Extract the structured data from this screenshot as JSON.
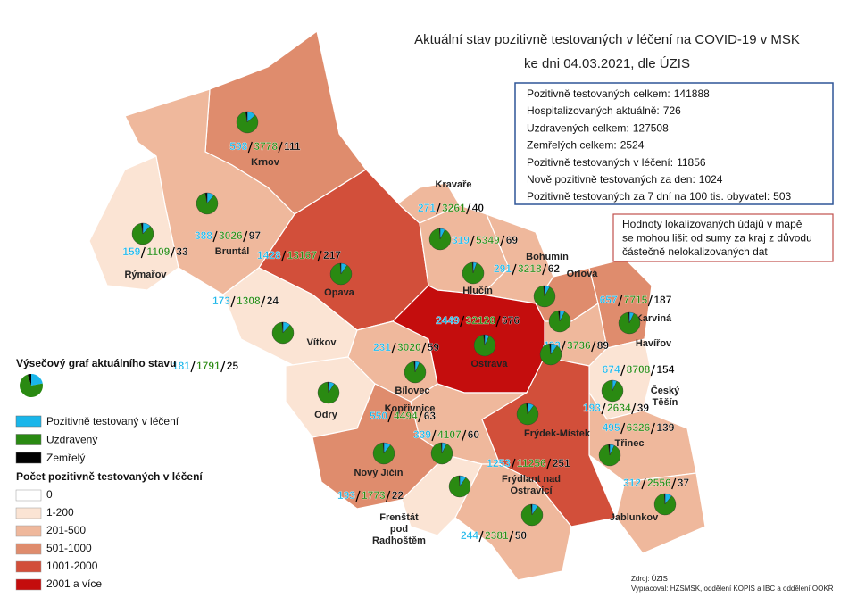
{
  "title": [
    "Aktuální stav pozitivně testovaných v léčení na COVID-19 v MSK",
    "ke dni 04.03.2021, dle ÚZIS"
  ],
  "stats": [
    {
      "label": "Pozitivně testovaných celkem:",
      "value": 141888
    },
    {
      "label": "Hospitalizovaných aktuálně:",
      "value": 726
    },
    {
      "label": "Uzdravených celkem:",
      "value": 127508
    },
    {
      "label": "Zemřelých celkem:",
      "value": 2524
    },
    {
      "label": "Pozitivně testovaných v léčení:",
      "value": 11856
    },
    {
      "label": "Nově pozitivně testovaných za den:",
      "value": 1024
    },
    {
      "label": "Pozitivně testovaných za 7 dní na 100 tis. obyvatel:",
      "value": 503
    }
  ],
  "note": [
    "Hodnoty lokalizovaných údajů v mapě",
    "se mohou lišit od sumy za kraj z důvodu",
    "částečně nelokalizovaných dat"
  ],
  "legend": {
    "pie_title": "Výsečový graf aktuálního stavu",
    "items": [
      {
        "name": "Pozitivně testovaný v léčení",
        "color": "#1ab6ea"
      },
      {
        "name": "Uzdravený",
        "color": "#2a8a12"
      },
      {
        "name": "Zemřelý",
        "color": "#000000"
      }
    ],
    "classes_title": "Počet pozitivně testovaných v léčení",
    "classes": [
      {
        "label": "0",
        "color": "#ffffff"
      },
      {
        "label": "1-200",
        "color": "#fbe4d4"
      },
      {
        "label": "201-500",
        "color": "#efb89c"
      },
      {
        "label": "501-1000",
        "color": "#df8c6d"
      },
      {
        "label": "1001-2000",
        "color": "#d24f3a"
      },
      {
        "label": "2001 a více",
        "color": "#c40d0d"
      }
    ]
  },
  "districts": [
    {
      "name": [
        "Krnov"
      ],
      "values": [
        598,
        3778,
        111
      ],
      "color": "#df8c6d"
    },
    {
      "name": [
        "Kravaře"
      ],
      "values": [
        271,
        3261,
        40
      ],
      "color": "#efb89c"
    },
    {
      "name": [
        "Rýmařov"
      ],
      "values": [
        159,
        1109,
        33
      ],
      "color": "#fbe4d4"
    },
    {
      "name": [
        "Bruntál"
      ],
      "values": [
        388,
        3026,
        97
      ],
      "color": "#efb89c"
    },
    {
      "name": [
        "Opava"
      ],
      "values": [
        1428,
        13167,
        217
      ],
      "color": "#d24f3a"
    },
    {
      "name": [
        "Hlučín"
      ],
      "values": [
        319,
        5349,
        69
      ],
      "color": "#efb89c"
    },
    {
      "name": [
        "Bohumín"
      ],
      "values": [
        291,
        3218,
        62
      ],
      "color": "#efb89c"
    },
    {
      "name": [
        "Orlová"
      ],
      "values": [
        657,
        7715,
        187
      ],
      "color": "#df8c6d"
    },
    {
      "name": [
        "Karviná"
      ],
      "values": [
        674,
        8708,
        154
      ],
      "color": "#df8c6d"
    },
    {
      "name": [
        "Havířov"
      ],
      "values": [
        433,
        3736,
        89
      ],
      "color": "#efb89c"
    },
    {
      "name": [
        "Český",
        "Těšín"
      ],
      "values": [
        193,
        2634,
        39
      ],
      "color": "#fbe4d4"
    },
    {
      "name": [
        "Třinec"
      ],
      "values": [
        495,
        6326,
        139
      ],
      "color": "#efb89c"
    },
    {
      "name": [
        "Jablunkov"
      ],
      "values": [
        312,
        2556,
        37
      ],
      "color": "#efb89c"
    },
    {
      "name": [
        "Vítkov"
      ],
      "values": [
        173,
        1308,
        24
      ],
      "color": "#fbe4d4"
    },
    {
      "name": [
        "Odry"
      ],
      "values": [
        181,
        1791,
        25
      ],
      "color": "#fbe4d4"
    },
    {
      "name": [
        "Bílovec"
      ],
      "values": [
        231,
        3020,
        59
      ],
      "color": "#efb89c"
    },
    {
      "name": [
        "Ostrava"
      ],
      "values": [
        2449,
        32128,
        676
      ],
      "color": "#c40d0d"
    },
    {
      "name": [
        "Kopřivnice"
      ],
      "values": [
        339,
        4107,
        60
      ],
      "color": "#efb89c"
    },
    {
      "name": [
        "Nový Jičín"
      ],
      "values": [
        550,
        4494,
        63
      ],
      "color": "#df8c6d"
    },
    {
      "name": [
        "Frenštát",
        "pod",
        "Radhoštěm"
      ],
      "values": [
        193,
        1773,
        22
      ],
      "color": "#fbe4d4"
    },
    {
      "name": [
        "Frýdek-Místek"
      ],
      "values": [
        1253,
        11256,
        251
      ],
      "color": "#d24f3a"
    },
    {
      "name": [
        "Frýdlant nad",
        "Ostravicí"
      ],
      "values": [
        244,
        2381,
        50
      ],
      "color": "#efb89c"
    }
  ],
  "source": [
    "Zdroj: ÚZIS",
    "Vypracoval: HZSMSK, oddělení KOPIS a IBC a oddělení OOKŘ"
  ]
}
